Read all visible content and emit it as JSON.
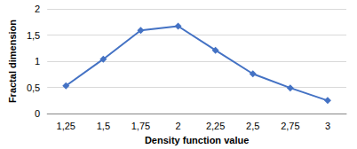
{
  "chart_data": {
    "type": "line",
    "x_label": "Density function value",
    "y_label": "Fractal dimension",
    "categories": [
      "1,25",
      "1,5",
      "1,75",
      "2",
      "2,25",
      "2,5",
      "2,75",
      "3"
    ],
    "values": [
      0.53,
      1.04,
      1.59,
      1.67,
      1.21,
      0.76,
      0.49,
      0.25
    ],
    "color": "#4472c4",
    "marker": "diamond",
    "ylim": [
      0,
      2
    ],
    "yticks": [
      0,
      {
        "value": 0.5,
        "label": "0,5"
      },
      1,
      {
        "value": 1.5,
        "label": "1,5"
      },
      2
    ],
    "grid": true
  }
}
